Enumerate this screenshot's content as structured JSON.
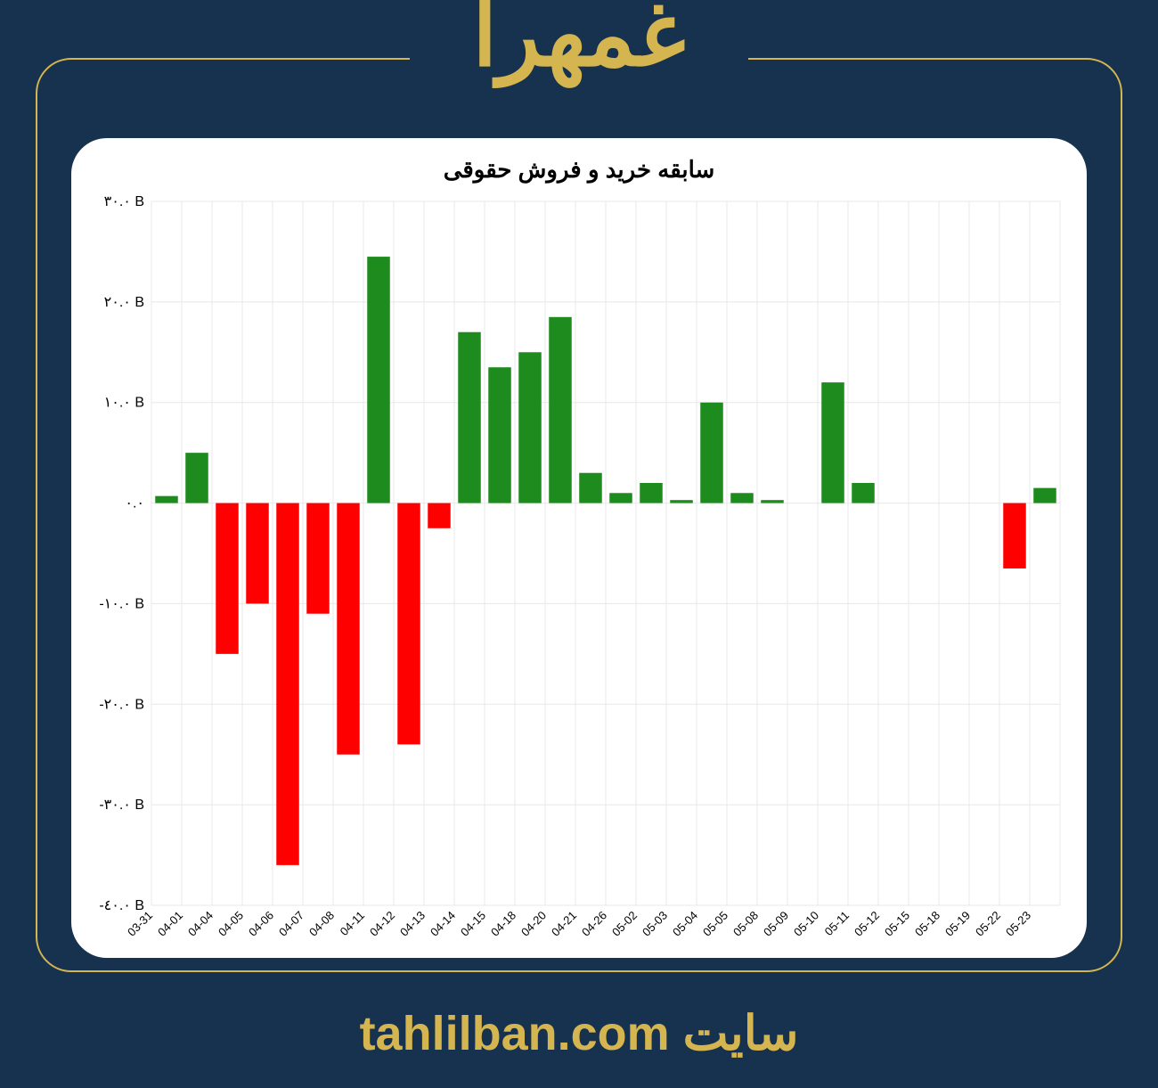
{
  "header": {
    "stock_name": "غمهرا",
    "stock_name_fontsize": 100,
    "stock_name_color": "#d4b550"
  },
  "page_background": "#16324f",
  "frame": {
    "border_color": "#d4b550",
    "border_width": 2,
    "border_radius": 40
  },
  "footer": {
    "site_label": "سایت",
    "site_url": "tahlilban.com",
    "color": "#d4b550",
    "fontsize": 54
  },
  "chart": {
    "type": "bar",
    "title": "سابقه خرید و فروش حقوقی",
    "title_fontsize": 26,
    "title_color": "#000000",
    "background_color": "#ffffff",
    "card_radius": 40,
    "grid_color": "#e8e8e8",
    "positive_color": "#1e8b1e",
    "negative_color": "#ff0000",
    "y_axis": {
      "min": -40,
      "max": 30,
      "tick_step": 10,
      "tick_suffix": "B",
      "ticks": [
        {
          "value": 30,
          "label": "٣٠.٠ B"
        },
        {
          "value": 20,
          "label": "٢٠.٠ B"
        },
        {
          "value": 10,
          "label": "١٠.٠ B"
        },
        {
          "value": 0,
          "label": "٠.٠"
        },
        {
          "value": -10,
          "label": "-١٠.٠ B"
        },
        {
          "value": -20,
          "label": "-٢٠.٠ B"
        },
        {
          "value": -30,
          "label": "-٣٠.٠ B"
        },
        {
          "value": -40,
          "label": "-٤٠.٠ B"
        }
      ],
      "label_fontsize": 16
    },
    "x_axis": {
      "label_fontsize": 13,
      "label_rotation": -45
    },
    "bar_width_ratio": 0.75,
    "categories": [
      "03-31",
      "04-01",
      "04-04",
      "04-05",
      "04-06",
      "04-07",
      "04-08",
      "04-11",
      "04-12",
      "04-13",
      "04-14",
      "04-15",
      "04-18",
      "04-20",
      "04-21",
      "04-26",
      "05-02",
      "05-03",
      "05-04",
      "05-05",
      "05-08",
      "05-09",
      "05-10",
      "05-11",
      "05-12",
      "05-15",
      "05-18",
      "05-19",
      "05-22",
      "05-23"
    ],
    "values": [
      0.7,
      5,
      -15,
      -10,
      -36,
      -11,
      -25,
      24.5,
      -24,
      -2.5,
      17,
      13.5,
      15,
      18.5,
      3,
      1,
      2,
      0.3,
      10,
      1,
      0.3,
      0,
      12,
      2,
      0,
      0,
      0,
      0,
      -6.5,
      1.5
    ]
  }
}
